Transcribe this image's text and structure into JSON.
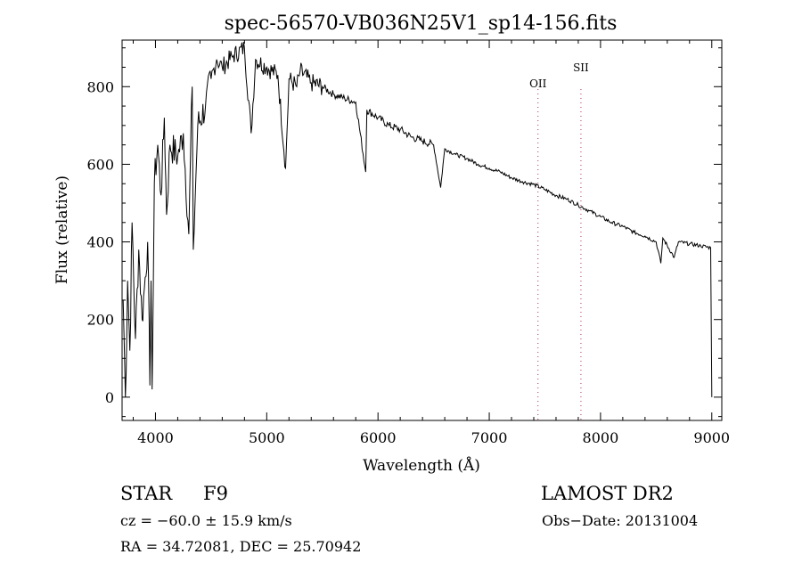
{
  "chart_data": {
    "type": "line",
    "title": "spec-56570-VB036N25V1_sp14-156.fits",
    "xlabel": "Wavelength (Å)",
    "ylabel": "Flux (relative)",
    "xlim": [
      3700,
      9090
    ],
    "ylim": [
      -60,
      920
    ],
    "xticks": [
      4000,
      5000,
      6000,
      7000,
      8000,
      9000
    ],
    "yticks": [
      0,
      200,
      400,
      600,
      800
    ],
    "grid": false,
    "lines": [
      {
        "label": "OII",
        "x": 7438
      },
      {
        "label": "SII",
        "x": 7824
      }
    ],
    "series": [
      {
        "name": "spectrum",
        "x": [
          3710,
          3730,
          3750,
          3770,
          3790,
          3820,
          3850,
          3880,
          3900,
          3930,
          3950,
          3960,
          3970,
          3990,
          4020,
          4050,
          4080,
          4100,
          4130,
          4200,
          4250,
          4300,
          4330,
          4340,
          4380,
          4450,
          4500,
          4550,
          4600,
          4700,
          4800,
          4860,
          4900,
          5000,
          5100,
          5170,
          5200,
          5270,
          5300,
          5400,
          5500,
          5600,
          5700,
          5800,
          5890,
          5900,
          6000,
          6100,
          6200,
          6300,
          6400,
          6500,
          6563,
          6600,
          6700,
          6800,
          6900,
          7000,
          7100,
          7200,
          7300,
          7400,
          7500,
          7600,
          7700,
          7800,
          7900,
          8000,
          8100,
          8200,
          8300,
          8400,
          8500,
          8542,
          8560,
          8662,
          8700,
          8800,
          8900,
          8990,
          9000
        ],
        "y": [
          250,
          0,
          300,
          120,
          450,
          150,
          380,
          200,
          280,
          400,
          30,
          300,
          20,
          550,
          650,
          520,
          720,
          470,
          650,
          620,
          680,
          420,
          800,
          380,
          700,
          750,
          820,
          870,
          850,
          880,
          900,
          680,
          870,
          850,
          830,
          590,
          820,
          800,
          840,
          810,
          800,
          780,
          770,
          760,
          580,
          740,
          720,
          700,
          690,
          670,
          660,
          650,
          540,
          640,
          625,
          615,
          600,
          590,
          580,
          565,
          555,
          548,
          535,
          520,
          510,
          495,
          480,
          465,
          450,
          440,
          425,
          415,
          400,
          345,
          410,
          360,
          400,
          395,
          390,
          385,
          0
        ]
      }
    ]
  },
  "footer": {
    "object_class": "STAR",
    "subclass": "F9",
    "survey": "LAMOST DR2",
    "cz": "cz = −60.0 ± 15.9 km/s",
    "obs_date": "Obs−Date: 20131004",
    "coords": "RA =  34.72081, DEC =  25.70942"
  }
}
